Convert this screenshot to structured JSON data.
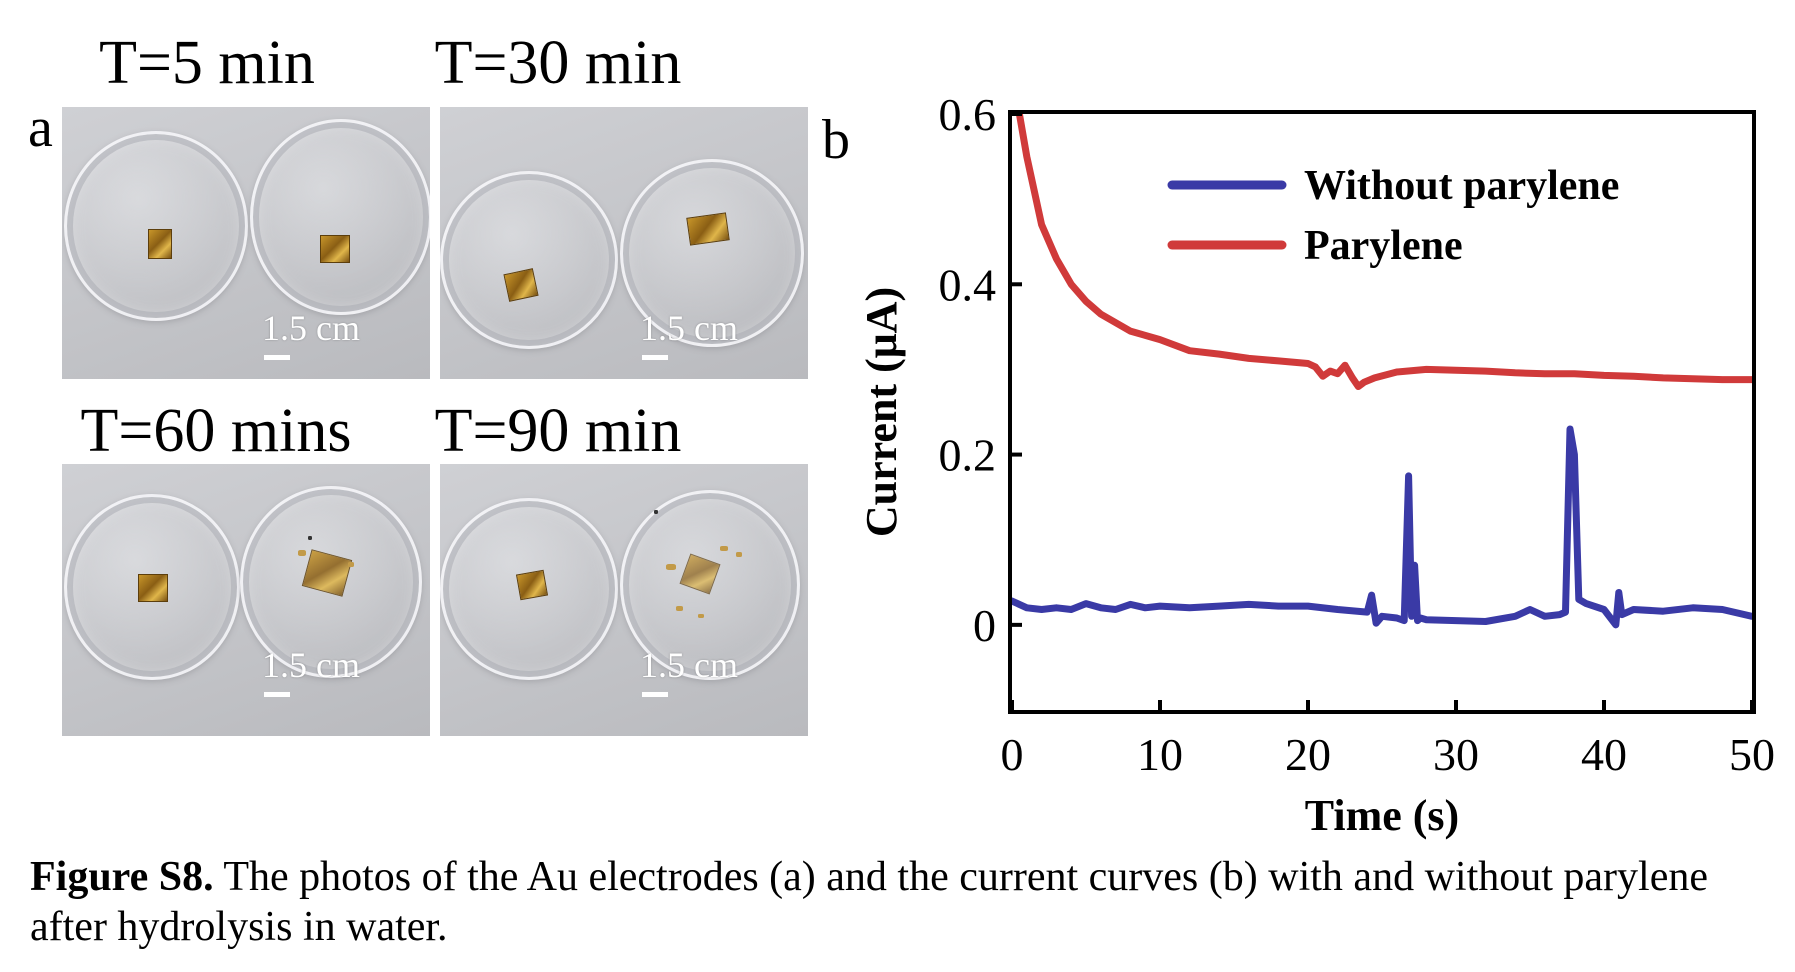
{
  "panel_a": {
    "letter": "a",
    "photos": [
      {
        "title": "T=5 min",
        "scale": "1.5 cm"
      },
      {
        "title": "T=30 min",
        "scale": "1.5 cm"
      },
      {
        "title": "T=60 mins",
        "scale": "1.5 cm"
      },
      {
        "title": "T=90 min",
        "scale": "1.5 cm"
      }
    ]
  },
  "panel_b": {
    "letter": "b"
  },
  "chart_data": {
    "type": "line",
    "xlabel": "Time (s)",
    "ylabel": "Current (μA)",
    "xlim": [
      0,
      50
    ],
    "ylim": [
      -0.1,
      0.6
    ],
    "xticks": [
      "0",
      "10",
      "20",
      "30",
      "40",
      "50"
    ],
    "yticks": [
      "0",
      "0.2",
      "0.4",
      "0.6"
    ],
    "ytick_values": [
      0,
      0.2,
      0.4,
      0.6
    ],
    "xtick_values": [
      0,
      10,
      20,
      30,
      40,
      50
    ],
    "grid": false,
    "legend_position": "top-right",
    "series": [
      {
        "name": "Without parylene",
        "color": "#3a3aa6",
        "x": [
          0,
          1,
          2,
          3,
          4,
          5,
          6,
          7,
          8,
          9,
          10,
          12,
          14,
          16,
          18,
          20,
          22,
          24,
          24.3,
          24.6,
          25,
          26,
          26.5,
          26.8,
          27.0,
          27.2,
          27.4,
          27.6,
          28,
          30,
          32,
          34,
          35,
          36,
          37,
          37.4,
          37.7,
          38.0,
          38.3,
          38.8,
          40,
          40.8,
          41.0,
          41.2,
          42,
          44,
          46,
          48,
          50
        ],
        "y": [
          0.028,
          0.02,
          0.018,
          0.02,
          0.018,
          0.025,
          0.02,
          0.018,
          0.024,
          0.02,
          0.022,
          0.02,
          0.022,
          0.024,
          0.022,
          0.022,
          0.018,
          0.015,
          0.035,
          0.002,
          0.01,
          0.008,
          0.005,
          0.175,
          0.01,
          0.07,
          0.005,
          0.008,
          0.006,
          0.005,
          0.004,
          0.01,
          0.018,
          0.01,
          0.012,
          0.015,
          0.23,
          0.2,
          0.03,
          0.025,
          0.018,
          0.0,
          0.038,
          0.012,
          0.018,
          0.016,
          0.02,
          0.018,
          0.01
        ]
      },
      {
        "name": "Parylene",
        "color": "#d03a3a",
        "x": [
          0.5,
          1,
          1.5,
          2,
          3,
          4,
          5,
          6,
          8,
          10,
          12,
          14,
          16,
          18,
          20,
          20.5,
          21,
          21.5,
          22,
          22.5,
          23,
          23.4,
          23.8,
          24.5,
          26,
          28,
          30,
          32,
          34,
          36,
          38,
          40,
          42,
          44,
          46,
          48,
          50
        ],
        "y": [
          0.6,
          0.55,
          0.51,
          0.47,
          0.43,
          0.4,
          0.38,
          0.365,
          0.345,
          0.335,
          0.322,
          0.318,
          0.313,
          0.31,
          0.307,
          0.303,
          0.292,
          0.298,
          0.295,
          0.305,
          0.29,
          0.28,
          0.285,
          0.29,
          0.297,
          0.3,
          0.299,
          0.298,
          0.296,
          0.295,
          0.295,
          0.293,
          0.292,
          0.29,
          0.289,
          0.288,
          0.288
        ]
      }
    ]
  },
  "caption": {
    "label": "Figure S8.",
    "text": " The photos of the Au electrodes (a) and the current curves (b) with and without parylene after hydrolysis in water."
  }
}
